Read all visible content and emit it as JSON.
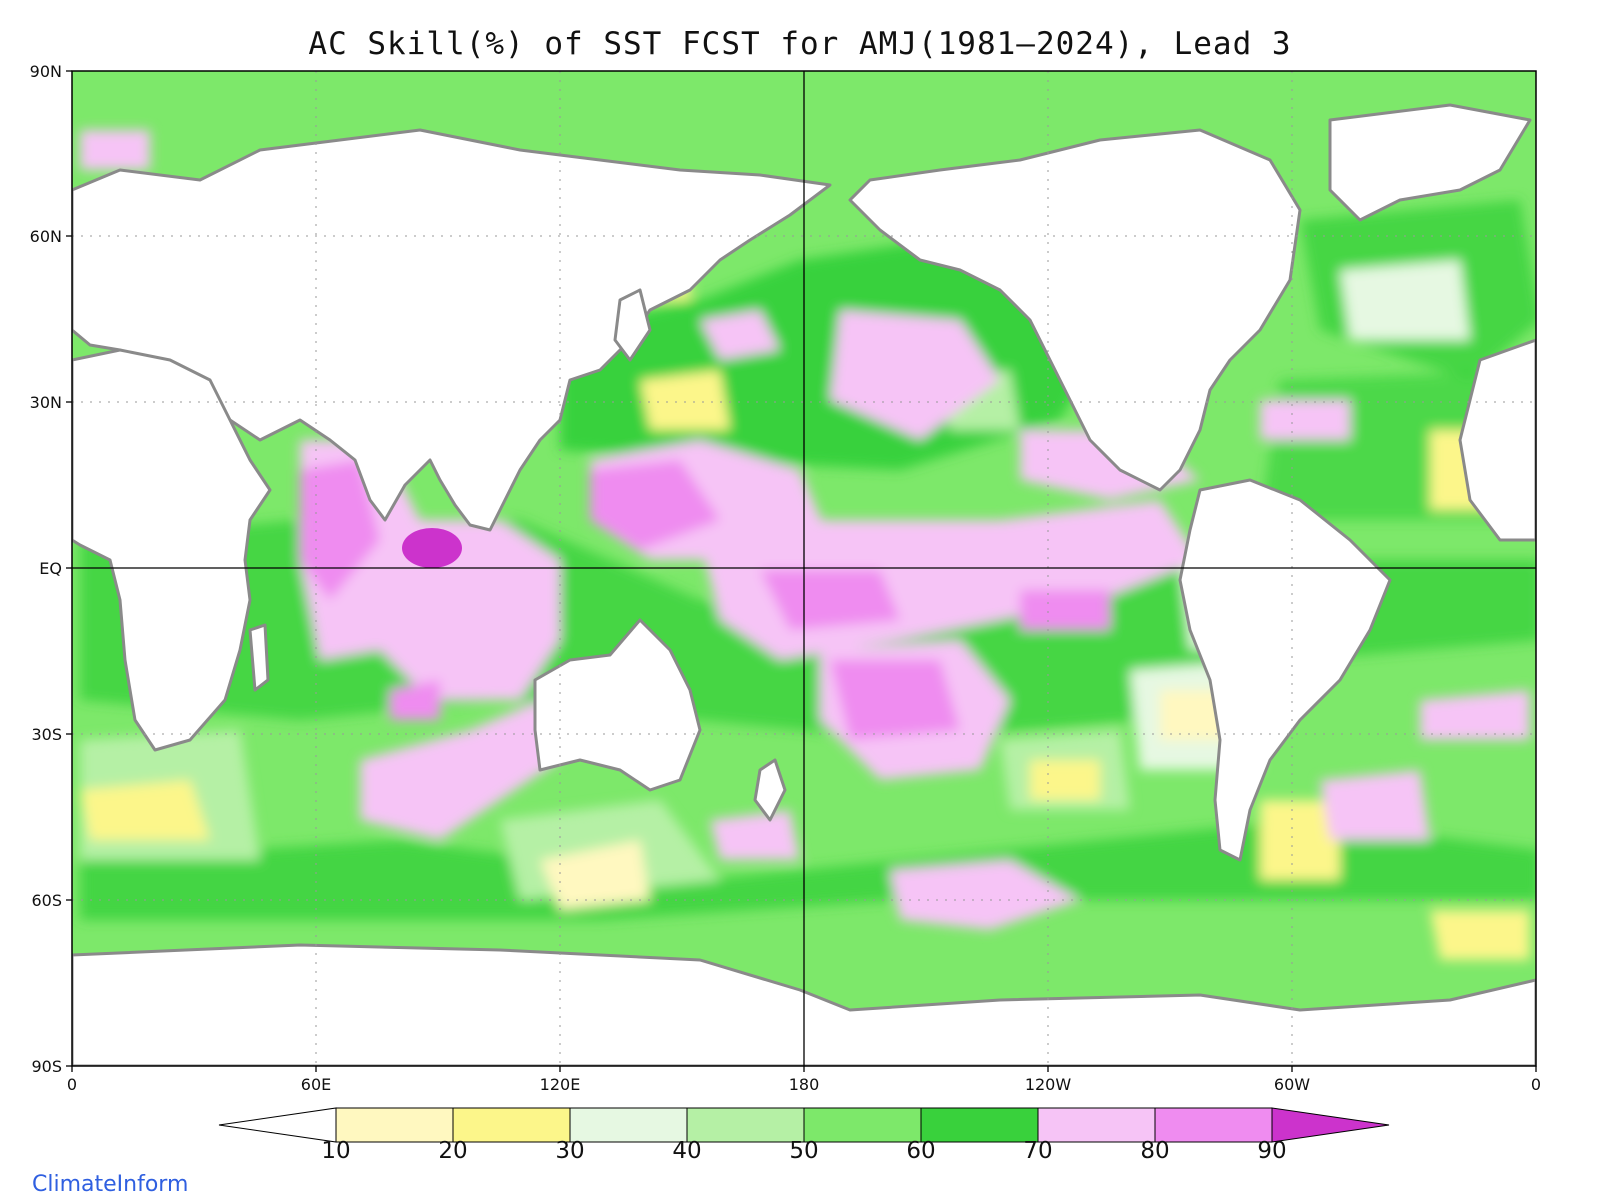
{
  "title": "AC Skill(%) of SST FCST for AMJ(1981–2024), Lead 3",
  "lat_labels": [
    "90N",
    "60N",
    "30N",
    "EQ",
    "30S",
    "60S",
    "90S"
  ],
  "lon_labels": [
    "0",
    "60E",
    "120E",
    "180",
    "120W",
    "60W",
    "0"
  ],
  "colorbar": {
    "levels": [
      "10",
      "20",
      "30",
      "40",
      "50",
      "60",
      "70",
      "80",
      "90"
    ],
    "colors": [
      "#ffffff",
      "#fff8c0",
      "#fcf68a",
      "#e6f8e2",
      "#b5f0a5",
      "#7de86a",
      "#39d13c",
      "#f6c4f6",
      "#ef8cf0",
      "#cc33cc"
    ]
  },
  "credit": "ClimateInform",
  "map": {
    "projection": "equidistant cylindrical",
    "central_longitude": 180,
    "grid": "dotted"
  }
}
